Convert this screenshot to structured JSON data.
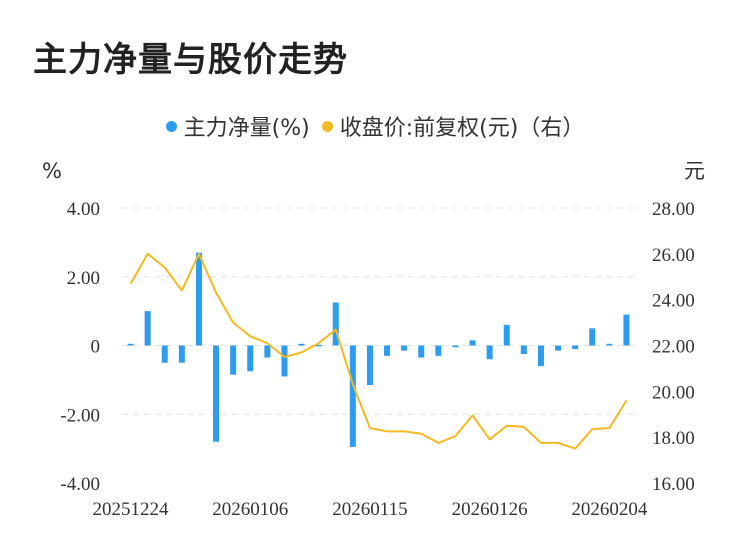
{
  "title": "主力净量与股价走势",
  "chart_data": {
    "type": "bar+line",
    "title": "主力净量与股价走势",
    "legend": [
      {
        "name": "主力净量(%)",
        "color": "#2c9cf0"
      },
      {
        "name": "收盘价:前复权(元)（右）",
        "color": "#f5b921"
      }
    ],
    "y_left": {
      "unit": "%",
      "ticks": [
        "4.00",
        "2.00",
        "0",
        "-2.00",
        "-4.00"
      ],
      "range": [
        -4,
        4
      ]
    },
    "y_right": {
      "unit": "元",
      "ticks": [
        "28.00",
        "26.00",
        "24.00",
        "22.00",
        "20.00",
        "18.00",
        "16.00"
      ],
      "range": [
        16,
        28
      ]
    },
    "x_labels": [
      {
        "label": "20251224",
        "index": 0
      },
      {
        "label": "20260106",
        "index": 7
      },
      {
        "label": "20260115",
        "index": 14
      },
      {
        "label": "20260126",
        "index": 21
      },
      {
        "label": "20260204",
        "index": 28
      }
    ],
    "categories_count": 30,
    "series": [
      {
        "name": "主力净量(%)",
        "type": "bar",
        "color": "#2c9cf0",
        "values": [
          0.05,
          1.0,
          -0.5,
          -0.5,
          2.7,
          -2.8,
          -0.85,
          -0.75,
          -0.35,
          -0.9,
          0.05,
          0.02,
          1.25,
          -2.95,
          -1.15,
          -0.3,
          -0.15,
          -0.35,
          -0.3,
          -0.05,
          0.15,
          -0.4,
          0.6,
          -0.25,
          -0.6,
          -0.15,
          -0.1,
          0.5,
          0.05,
          0.9
        ]
      },
      {
        "name": "收盘价:前复权(元)（右）",
        "type": "line",
        "color": "#f5b921",
        "values": [
          24.7,
          26.0,
          25.4,
          24.4,
          26.0,
          24.3,
          23.0,
          22.4,
          22.1,
          21.5,
          21.7,
          22.1,
          22.7,
          20.3,
          18.4,
          18.25,
          18.25,
          18.15,
          17.75,
          18.05,
          18.95,
          17.9,
          18.5,
          18.45,
          17.75,
          17.75,
          17.5,
          18.35,
          18.4,
          19.6
        ]
      }
    ],
    "grid": true
  }
}
